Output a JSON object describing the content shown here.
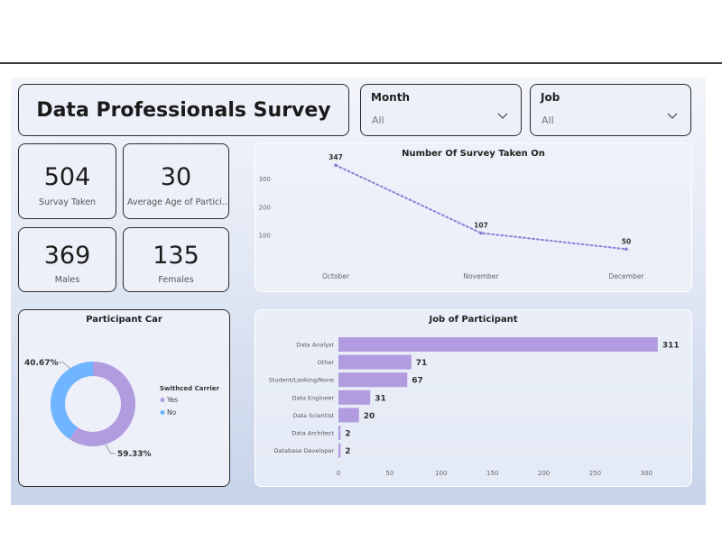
{
  "header": {
    "title": "Data Professionals Survey"
  },
  "filters": [
    {
      "label": "Month",
      "value": "All"
    },
    {
      "label": "Job",
      "value": "All"
    }
  ],
  "kpis": [
    {
      "value": "504",
      "caption": "Survay Taken"
    },
    {
      "value": "30",
      "caption": "Average Age of Partici..."
    },
    {
      "value": "369",
      "caption": "Males"
    },
    {
      "value": "135",
      "caption": "Females"
    }
  ],
  "colors": {
    "purple": "#b29ce0",
    "blue": "#6fb5ff",
    "line": "#8a82d8"
  },
  "chart_data": [
    {
      "type": "line",
      "title": "Number Of Survey Taken On",
      "categories": [
        "October",
        "November",
        "December"
      ],
      "values": [
        347,
        107,
        50
      ],
      "y_ticks": [
        100,
        200,
        300
      ],
      "ylim": [
        0,
        370
      ],
      "line_style": "dotted",
      "data_labels": true
    },
    {
      "type": "pie",
      "variant": "donut",
      "title": "Participant Car",
      "legend_title": "Swithced Carrier",
      "legend_position": "right",
      "slices": [
        {
          "label": "Yes",
          "percent": 59.33,
          "display": "59.33%",
          "color": "#b29ce0"
        },
        {
          "label": "No",
          "percent": 40.67,
          "display": "40.67%",
          "color": "#6fb5ff"
        }
      ]
    },
    {
      "type": "bar",
      "orientation": "horizontal",
      "title": "Job of Participant",
      "categories": [
        "Data Analyst",
        "Other",
        "Student/Looking/None",
        "Data Engineer",
        "Data Scientist",
        "Data Architect",
        "Database Developer"
      ],
      "values": [
        311,
        71,
        67,
        31,
        20,
        2,
        2
      ],
      "x_ticks": [
        0,
        50,
        100,
        150,
        200,
        250,
        300
      ],
      "xlim": [
        0,
        312
      ],
      "data_labels": true
    }
  ]
}
